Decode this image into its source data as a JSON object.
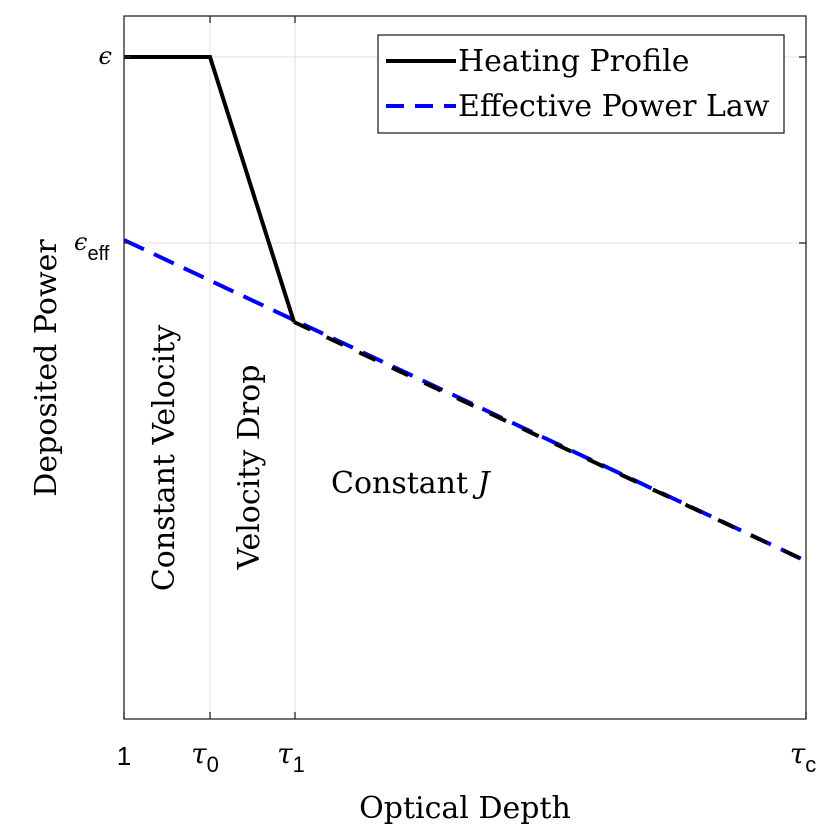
{
  "chart_data": {
    "type": "line",
    "xlabel": "Optical Depth",
    "ylabel": "Deposited Power",
    "x_ticks": [
      {
        "label": "1",
        "sub": ""
      },
      {
        "label": "τ",
        "sub": "0"
      },
      {
        "label": "τ",
        "sub": "1"
      },
      {
        "label": "τ",
        "sub": "c"
      }
    ],
    "y_ticks": [
      {
        "label": "ϵ",
        "sub": ""
      },
      {
        "label": "ϵ",
        "sub": "eff"
      }
    ],
    "grid": true,
    "legend_position": "top-right",
    "series": [
      {
        "name": "Heating Profile",
        "color": "#000000",
        "style": "solid",
        "points": [
          {
            "x": "1",
            "y": "ϵ"
          },
          {
            "x": "τ0",
            "y": "ϵ"
          },
          {
            "x": "τ1",
            "y": "drop"
          },
          {
            "x": "τc",
            "y": "end"
          }
        ]
      },
      {
        "name": "Effective Power Law",
        "color": "#0000ff",
        "style": "dashed",
        "points": [
          {
            "x": "1",
            "y": "ϵeff"
          },
          {
            "x": "τc",
            "y": "end"
          }
        ]
      }
    ],
    "annotations": [
      {
        "text": "Constant Velocity",
        "orientation": "vertical"
      },
      {
        "text": "Velocity Drop",
        "orientation": "vertical"
      },
      {
        "text": "Constant ",
        "math": "J",
        "orientation": "horizontal"
      }
    ]
  }
}
